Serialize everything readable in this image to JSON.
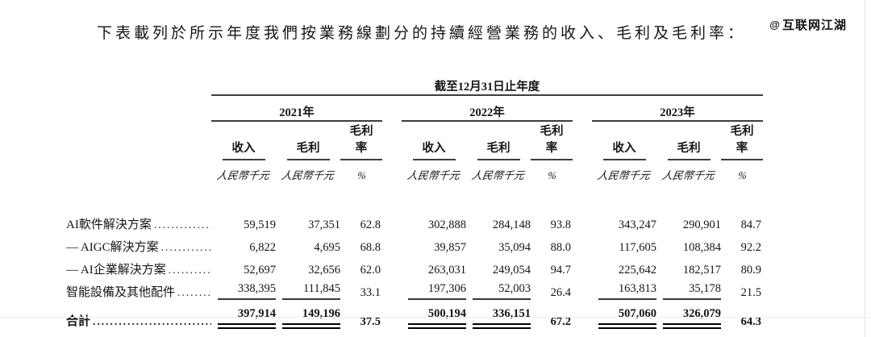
{
  "page": {
    "title": "下表載列於所示年度我們按業務線劃分的持續經營業務的收入、毛利及毛利率：",
    "watermark": {
      "icon": "@",
      "text": "互联网江湖"
    }
  },
  "table": {
    "period_header": "截至12月31日止年度",
    "years": [
      "2021年",
      "2022年",
      "2023年"
    ],
    "columns": [
      "收入",
      "毛利",
      "毛利率"
    ],
    "units": {
      "amount": "人民幣千元",
      "percent": "%"
    },
    "dot_leader": "..........................................................",
    "rows": [
      {
        "label": "AI軟件解決方案",
        "values": [
          "59,519",
          "37,351",
          "62.8",
          "302,888",
          "284,148",
          "93.8",
          "343,247",
          "290,901",
          "84.7"
        ]
      },
      {
        "label": "— AIGC解決方案",
        "values": [
          "6,822",
          "4,695",
          "68.8",
          "39,857",
          "35,094",
          "88.0",
          "117,605",
          "108,384",
          "92.2"
        ]
      },
      {
        "label": "— AI企業解決方案",
        "values": [
          "52,697",
          "32,656",
          "62.0",
          "263,031",
          "249,054",
          "94.7",
          "225,642",
          "182,517",
          "80.9"
        ]
      },
      {
        "label": "智能設備及其他配件",
        "rule_under": true,
        "values": [
          "338,395",
          "111,845",
          "33.1",
          "197,306",
          "52,003",
          "26.4",
          "163,813",
          "35,178",
          "21.5"
        ]
      },
      {
        "label": "合計",
        "is_total": true,
        "values": [
          "397,914",
          "149,196",
          "37.5",
          "500,194",
          "336,151",
          "67.2",
          "507,060",
          "326,079",
          "64.3"
        ]
      }
    ]
  }
}
